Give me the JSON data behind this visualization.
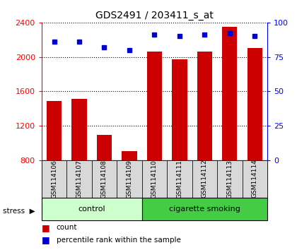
{
  "title": "GDS2491 / 203411_s_at",
  "samples": [
    "GSM114106",
    "GSM114107",
    "GSM114108",
    "GSM114109",
    "GSM114110",
    "GSM114111",
    "GSM114112",
    "GSM114113",
    "GSM114114"
  ],
  "counts": [
    1490,
    1510,
    1090,
    900,
    2060,
    1970,
    2060,
    2350,
    2100
  ],
  "percentiles": [
    86,
    86,
    82,
    80,
    91,
    90,
    91,
    92,
    90
  ],
  "groups": [
    {
      "label": "control",
      "start": 0,
      "end": 3,
      "color": "#ccffcc"
    },
    {
      "label": "cigarette smoking",
      "start": 4,
      "end": 8,
      "color": "#44cc44"
    }
  ],
  "ylim_left": [
    800,
    2400
  ],
  "ylim_right": [
    0,
    100
  ],
  "yticks_left": [
    800,
    1200,
    1600,
    2000,
    2400
  ],
  "yticks_right": [
    0,
    25,
    50,
    75,
    100
  ],
  "bar_color": "#cc0000",
  "dot_color": "#0000cc",
  "bar_width": 0.6,
  "grid_color": "black",
  "bg_color": "#d8d8d8",
  "stress_label": "stress",
  "legend_count": "count",
  "legend_percentile": "percentile rank within the sample"
}
